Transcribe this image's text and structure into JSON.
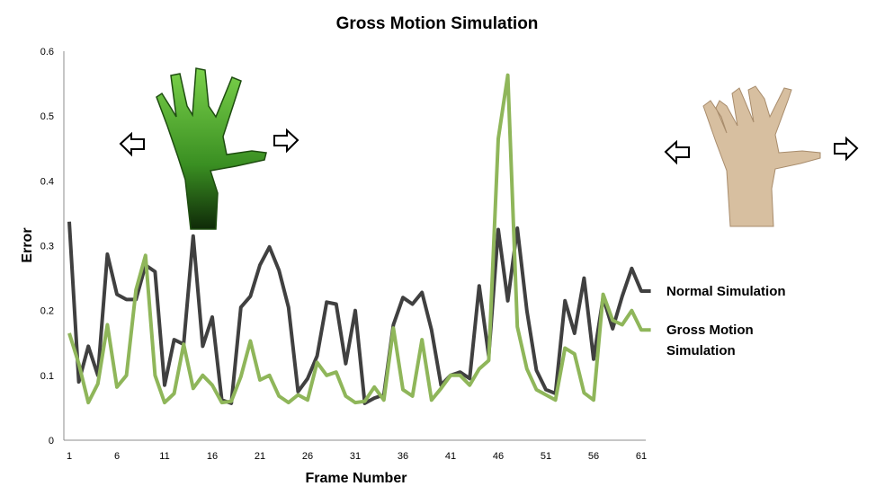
{
  "chart_data": {
    "type": "line",
    "title": "Gross Motion Simulation",
    "xlabel": "Frame Number",
    "ylabel": "Error",
    "xlim": [
      1,
      61
    ],
    "ylim": [
      0,
      0.6
    ],
    "x_ticks": [
      1,
      6,
      11,
      16,
      21,
      26,
      31,
      36,
      41,
      46,
      51,
      56,
      61
    ],
    "y_ticks": [
      0,
      0.1,
      0.2,
      0.3,
      0.4,
      0.5,
      0.6
    ],
    "grid": false,
    "legend_placement": "right",
    "x": [
      1,
      2,
      3,
      4,
      5,
      6,
      7,
      8,
      9,
      10,
      11,
      12,
      13,
      14,
      15,
      16,
      17,
      18,
      19,
      20,
      21,
      22,
      23,
      24,
      25,
      26,
      27,
      28,
      29,
      30,
      31,
      32,
      33,
      34,
      35,
      36,
      37,
      38,
      39,
      40,
      41,
      42,
      43,
      44,
      45,
      46,
      47,
      48,
      49,
      50,
      51,
      52,
      53,
      54,
      55,
      56,
      57,
      58,
      59,
      60,
      61,
      62
    ],
    "series": [
      {
        "name": "Normal Simulation",
        "color": "#404040",
        "values": [
          0.337,
          0.09,
          0.145,
          0.1,
          0.287,
          0.225,
          0.217,
          0.217,
          0.27,
          0.26,
          0.085,
          0.155,
          0.148,
          0.315,
          0.145,
          0.19,
          0.062,
          0.057,
          0.205,
          0.222,
          0.27,
          0.298,
          0.262,
          0.205,
          0.075,
          0.095,
          0.13,
          0.213,
          0.21,
          0.118,
          0.2,
          0.057,
          0.065,
          0.07,
          0.178,
          0.22,
          0.21,
          0.228,
          0.17,
          0.085,
          0.1,
          0.105,
          0.095,
          0.238,
          0.13,
          0.325,
          0.215,
          0.327,
          0.2,
          0.108,
          0.078,
          0.072,
          0.215,
          0.165,
          0.25,
          0.125,
          0.22,
          0.172,
          0.222,
          0.265,
          0.23,
          0.23
        ]
      },
      {
        "name": "Gross Motion Simulation",
        "color": "#8fb65a",
        "values": [
          0.165,
          0.118,
          0.058,
          0.087,
          0.178,
          0.082,
          0.1,
          0.232,
          0.285,
          0.1,
          0.058,
          0.072,
          0.148,
          0.08,
          0.1,
          0.085,
          0.058,
          0.06,
          0.098,
          0.153,
          0.093,
          0.1,
          0.068,
          0.058,
          0.07,
          0.062,
          0.12,
          0.1,
          0.105,
          0.068,
          0.058,
          0.06,
          0.082,
          0.062,
          0.173,
          0.078,
          0.068,
          0.155,
          0.062,
          0.08,
          0.1,
          0.1,
          0.085,
          0.11,
          0.123,
          0.465,
          0.563,
          0.175,
          0.11,
          0.078,
          0.07,
          0.062,
          0.142,
          0.133,
          0.073,
          0.062,
          0.225,
          0.185,
          0.178,
          0.2,
          0.17,
          0.17
        ]
      }
    ]
  },
  "decor": {
    "left_hand_icon": "green-3d-hand-model",
    "right_hand_icon": "real-hand-photo",
    "arrow_icon": "outline-arrow"
  }
}
